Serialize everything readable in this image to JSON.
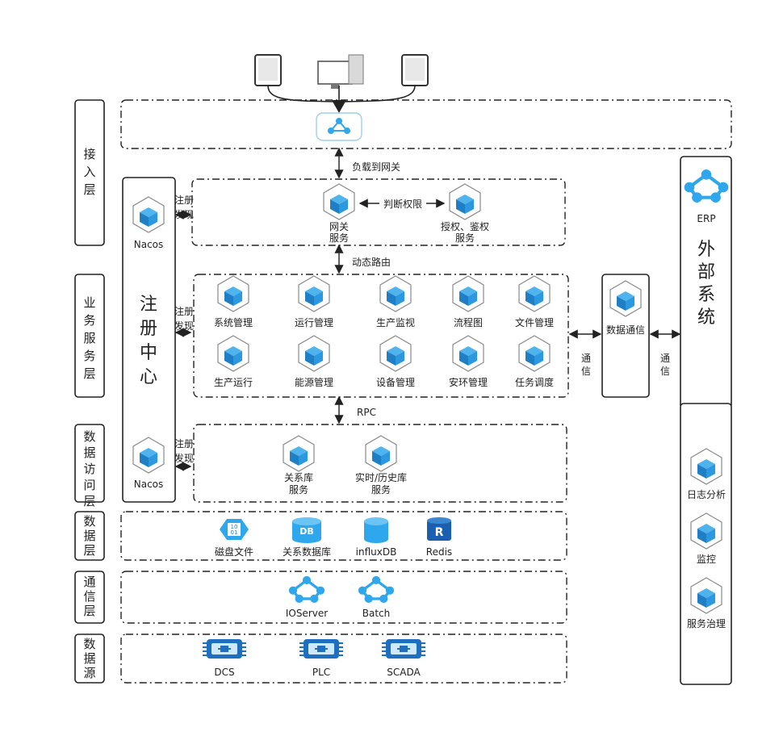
{
  "layers": {
    "access": "接入层",
    "business": "业务服务层",
    "data_access": "数据访问层",
    "data": "数据层",
    "comm": "通信层",
    "source": "数据源"
  },
  "registry": {
    "title": "注册中心",
    "nacos_top": "Nacos",
    "nacos_bottom": "Nacos",
    "discover": "注册发现"
  },
  "gateway": {
    "link_label": "负载到网关",
    "gateway_service": "网关服务",
    "auth_service": "授权、鉴权服务",
    "judge_label": "判断权限",
    "route_label": "动态路由"
  },
  "business_services": [
    "系统管理",
    "运行管理",
    "生产监视",
    "流程图",
    "文件管理",
    "生产运行",
    "能源管理",
    "设备管理",
    "安环管理",
    "任务调度"
  ],
  "rpc_label": "RPC",
  "data_access_services": [
    "关系库服务",
    "实时/历史库服务"
  ],
  "data_stores": [
    "磁盘文件",
    "关系数据库",
    "influxDB",
    "Redis"
  ],
  "db_icon_text": "DB",
  "redis_icon_text": "R",
  "disk_icon_text": "10\n01",
  "comm_items": [
    "IOServer",
    "Batch"
  ],
  "sources": [
    "DCS",
    "PLC",
    "SCADA"
  ],
  "data_comm": {
    "title": "数据通信",
    "comm_label": "通信"
  },
  "external": {
    "erp": "ERP",
    "title": "外部系统"
  },
  "governance": [
    "日志分析",
    "监控",
    "服务治理"
  ],
  "colors": {
    "blue": "#1e88d6",
    "blue_light": "#2ea7ec",
    "cube_top": "#4fb3ee",
    "cube_left": "#1f7fc6",
    "cube_right": "#2b98e0"
  }
}
